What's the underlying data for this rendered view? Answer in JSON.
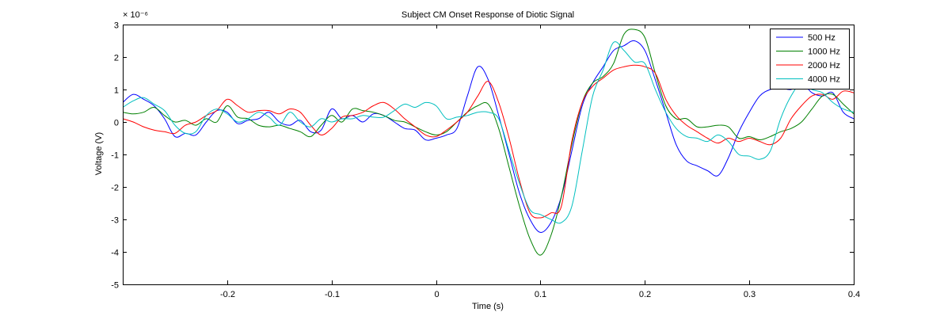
{
  "chart_data": {
    "type": "line",
    "title": "Subject CM Onset Response of Diotic Signal",
    "xlabel": "Time (s)",
    "ylabel": "Voltage (V)",
    "y_exponent_label": "× 10⁻⁶",
    "xlim": [
      -0.3,
      0.4
    ],
    "ylim": [
      -5,
      3
    ],
    "xticks": [
      -0.2,
      -0.1,
      0,
      0.1,
      0.2,
      0.3,
      0.4
    ],
    "xtick_labels": [
      "-0.2",
      "-0.1",
      "0",
      "0.1",
      "0.2",
      "0.3",
      "0.4"
    ],
    "yticks": [
      -5,
      -4,
      -3,
      -2,
      -1,
      0,
      1,
      2,
      3
    ],
    "ytick_labels": [
      "-5",
      "-4",
      "-3",
      "-2",
      "-1",
      "0",
      "1",
      "2",
      "3"
    ],
    "grid": false,
    "legend_position": "top-right",
    "series": [
      {
        "name": "500 Hz",
        "color": "#0000ff",
        "points": [
          [
            -0.3,
            0.6
          ],
          [
            -0.29,
            0.85
          ],
          [
            -0.28,
            0.7
          ],
          [
            -0.27,
            0.5
          ],
          [
            -0.26,
            0.1
          ],
          [
            -0.25,
            -0.45
          ],
          [
            -0.24,
            -0.35
          ],
          [
            -0.23,
            -0.4
          ],
          [
            -0.22,
            0.0
          ],
          [
            -0.21,
            0.35
          ],
          [
            -0.2,
            0.3
          ],
          [
            -0.19,
            -0.05
          ],
          [
            -0.18,
            0.05
          ],
          [
            -0.17,
            0.1
          ],
          [
            -0.16,
            0.3
          ],
          [
            -0.15,
            0.0
          ],
          [
            -0.14,
            -0.1
          ],
          [
            -0.13,
            0.05
          ],
          [
            -0.12,
            -0.3
          ],
          [
            -0.11,
            -0.25
          ],
          [
            -0.1,
            0.4
          ],
          [
            -0.09,
            0.1
          ],
          [
            -0.08,
            0.2
          ],
          [
            -0.07,
            0.0
          ],
          [
            -0.06,
            0.25
          ],
          [
            -0.05,
            0.2
          ],
          [
            -0.04,
            0.0
          ],
          [
            -0.03,
            -0.2
          ],
          [
            -0.02,
            -0.25
          ],
          [
            -0.01,
            -0.55
          ],
          [
            0.0,
            -0.5
          ],
          [
            0.01,
            -0.4
          ],
          [
            0.02,
            -0.2
          ],
          [
            0.03,
            0.8
          ],
          [
            0.04,
            1.7
          ],
          [
            0.05,
            1.3
          ],
          [
            0.06,
            0.2
          ],
          [
            0.07,
            -1.0
          ],
          [
            0.08,
            -2.2
          ],
          [
            0.09,
            -3.0
          ],
          [
            0.1,
            -3.4
          ],
          [
            0.11,
            -3.1
          ],
          [
            0.12,
            -2.3
          ],
          [
            0.13,
            -0.9
          ],
          [
            0.14,
            0.5
          ],
          [
            0.15,
            1.2
          ],
          [
            0.16,
            1.7
          ],
          [
            0.17,
            2.2
          ],
          [
            0.18,
            2.35
          ],
          [
            0.19,
            2.5
          ],
          [
            0.2,
            2.2
          ],
          [
            0.21,
            1.3
          ],
          [
            0.22,
            0.3
          ],
          [
            0.23,
            -0.7
          ],
          [
            0.24,
            -1.2
          ],
          [
            0.25,
            -1.35
          ],
          [
            0.26,
            -1.5
          ],
          [
            0.27,
            -1.65
          ],
          [
            0.28,
            -1.1
          ],
          [
            0.29,
            -0.3
          ],
          [
            0.3,
            0.3
          ],
          [
            0.31,
            0.8
          ],
          [
            0.32,
            1.0
          ],
          [
            0.33,
            1.05
          ],
          [
            0.34,
            1.0
          ],
          [
            0.35,
            1.2
          ],
          [
            0.36,
            0.9
          ],
          [
            0.37,
            0.8
          ],
          [
            0.38,
            0.9
          ],
          [
            0.39,
            0.3
          ],
          [
            0.4,
            0.1
          ]
        ]
      },
      {
        "name": "1000 Hz",
        "color": "#008000",
        "points": [
          [
            -0.3,
            0.3
          ],
          [
            -0.29,
            0.25
          ],
          [
            -0.28,
            0.3
          ],
          [
            -0.27,
            0.45
          ],
          [
            -0.26,
            0.2
          ],
          [
            -0.25,
            0.0
          ],
          [
            -0.24,
            0.05
          ],
          [
            -0.23,
            -0.1
          ],
          [
            -0.22,
            0.1
          ],
          [
            -0.21,
            0.0
          ],
          [
            -0.2,
            0.5
          ],
          [
            -0.19,
            0.15
          ],
          [
            -0.18,
            0.1
          ],
          [
            -0.17,
            -0.1
          ],
          [
            -0.16,
            -0.15
          ],
          [
            -0.15,
            -0.1
          ],
          [
            -0.14,
            -0.2
          ],
          [
            -0.13,
            -0.3
          ],
          [
            -0.12,
            -0.45
          ],
          [
            -0.11,
            -0.1
          ],
          [
            -0.1,
            0.2
          ],
          [
            -0.09,
            0.0
          ],
          [
            -0.08,
            0.4
          ],
          [
            -0.07,
            0.35
          ],
          [
            -0.06,
            0.3
          ],
          [
            -0.05,
            0.2
          ],
          [
            -0.04,
            0.05
          ],
          [
            -0.03,
            0.0
          ],
          [
            -0.02,
            -0.15
          ],
          [
            -0.01,
            -0.3
          ],
          [
            0.0,
            -0.4
          ],
          [
            0.01,
            -0.3
          ],
          [
            0.02,
            0.0
          ],
          [
            0.03,
            0.3
          ],
          [
            0.04,
            0.5
          ],
          [
            0.05,
            0.55
          ],
          [
            0.06,
            -0.2
          ],
          [
            0.07,
            -1.4
          ],
          [
            0.08,
            -2.6
          ],
          [
            0.09,
            -3.6
          ],
          [
            0.1,
            -4.1
          ],
          [
            0.11,
            -3.5
          ],
          [
            0.12,
            -2.3
          ],
          [
            0.13,
            -0.7
          ],
          [
            0.14,
            0.6
          ],
          [
            0.15,
            1.2
          ],
          [
            0.16,
            1.4
          ],
          [
            0.17,
            1.8
          ],
          [
            0.18,
            2.7
          ],
          [
            0.19,
            2.85
          ],
          [
            0.2,
            2.6
          ],
          [
            0.21,
            1.5
          ],
          [
            0.22,
            0.5
          ],
          [
            0.23,
            0.1
          ],
          [
            0.24,
            0.1
          ],
          [
            0.25,
            -0.15
          ],
          [
            0.26,
            -0.15
          ],
          [
            0.27,
            -0.1
          ],
          [
            0.28,
            -0.15
          ],
          [
            0.29,
            -0.5
          ],
          [
            0.3,
            -0.45
          ],
          [
            0.31,
            -0.55
          ],
          [
            0.32,
            -0.45
          ],
          [
            0.33,
            -0.3
          ],
          [
            0.34,
            -0.2
          ],
          [
            0.35,
            0.0
          ],
          [
            0.36,
            0.4
          ],
          [
            0.37,
            0.8
          ],
          [
            0.38,
            0.85
          ],
          [
            0.39,
            0.55
          ],
          [
            0.4,
            0.25
          ]
        ]
      },
      {
        "name": "2000 Hz",
        "color": "#ff0000",
        "points": [
          [
            -0.3,
            0.1
          ],
          [
            -0.29,
            0.0
          ],
          [
            -0.28,
            -0.15
          ],
          [
            -0.27,
            -0.25
          ],
          [
            -0.26,
            -0.3
          ],
          [
            -0.25,
            -0.35
          ],
          [
            -0.24,
            -0.1
          ],
          [
            -0.23,
            0.0
          ],
          [
            -0.22,
            0.2
          ],
          [
            -0.21,
            0.35
          ],
          [
            -0.2,
            0.7
          ],
          [
            -0.19,
            0.5
          ],
          [
            -0.18,
            0.3
          ],
          [
            -0.17,
            0.35
          ],
          [
            -0.16,
            0.35
          ],
          [
            -0.15,
            0.25
          ],
          [
            -0.14,
            0.4
          ],
          [
            -0.13,
            0.3
          ],
          [
            -0.12,
            -0.1
          ],
          [
            -0.11,
            -0.4
          ],
          [
            -0.1,
            -0.2
          ],
          [
            -0.09,
            0.15
          ],
          [
            -0.08,
            0.2
          ],
          [
            -0.07,
            0.3
          ],
          [
            -0.06,
            0.5
          ],
          [
            -0.05,
            0.6
          ],
          [
            -0.04,
            0.4
          ],
          [
            -0.03,
            0.1
          ],
          [
            -0.02,
            -0.15
          ],
          [
            -0.01,
            -0.4
          ],
          [
            0.0,
            -0.45
          ],
          [
            0.01,
            -0.25
          ],
          [
            0.02,
            0.0
          ],
          [
            0.03,
            0.3
          ],
          [
            0.04,
            0.8
          ],
          [
            0.05,
            1.25
          ],
          [
            0.06,
            0.6
          ],
          [
            0.07,
            -0.5
          ],
          [
            0.08,
            -1.8
          ],
          [
            0.09,
            -2.8
          ],
          [
            0.1,
            -2.95
          ],
          [
            0.11,
            -2.8
          ],
          [
            0.12,
            -2.6
          ],
          [
            0.13,
            -0.6
          ],
          [
            0.14,
            0.6
          ],
          [
            0.15,
            1.1
          ],
          [
            0.16,
            1.35
          ],
          [
            0.17,
            1.6
          ],
          [
            0.18,
            1.7
          ],
          [
            0.19,
            1.75
          ],
          [
            0.2,
            1.7
          ],
          [
            0.21,
            1.5
          ],
          [
            0.22,
            0.7
          ],
          [
            0.23,
            0.2
          ],
          [
            0.24,
            -0.1
          ],
          [
            0.25,
            -0.3
          ],
          [
            0.26,
            -0.5
          ],
          [
            0.27,
            -0.65
          ],
          [
            0.28,
            -0.5
          ],
          [
            0.29,
            -0.6
          ],
          [
            0.3,
            -0.5
          ],
          [
            0.31,
            -0.6
          ],
          [
            0.32,
            -0.7
          ],
          [
            0.33,
            -0.5
          ],
          [
            0.34,
            0.1
          ],
          [
            0.35,
            0.5
          ],
          [
            0.36,
            0.8
          ],
          [
            0.37,
            0.85
          ],
          [
            0.38,
            0.7
          ],
          [
            0.39,
            0.95
          ],
          [
            0.4,
            0.9
          ]
        ]
      },
      {
        "name": "4000 Hz",
        "color": "#00bfbf",
        "points": [
          [
            -0.3,
            0.45
          ],
          [
            -0.29,
            0.65
          ],
          [
            -0.28,
            0.75
          ],
          [
            -0.27,
            0.55
          ],
          [
            -0.26,
            0.35
          ],
          [
            -0.25,
            -0.1
          ],
          [
            -0.24,
            -0.35
          ],
          [
            -0.23,
            -0.3
          ],
          [
            -0.22,
            0.2
          ],
          [
            -0.21,
            0.4
          ],
          [
            -0.2,
            0.25
          ],
          [
            -0.19,
            0.0
          ],
          [
            -0.18,
            0.1
          ],
          [
            -0.17,
            0.3
          ],
          [
            -0.16,
            0.15
          ],
          [
            -0.15,
            -0.1
          ],
          [
            -0.14,
            0.3
          ],
          [
            -0.13,
            0.0
          ],
          [
            -0.12,
            -0.15
          ],
          [
            -0.11,
            0.1
          ],
          [
            -0.1,
            0.0
          ],
          [
            -0.09,
            0.1
          ],
          [
            -0.08,
            0.1
          ],
          [
            -0.07,
            0.2
          ],
          [
            -0.06,
            0.15
          ],
          [
            -0.05,
            0.15
          ],
          [
            -0.04,
            0.35
          ],
          [
            -0.03,
            0.55
          ],
          [
            -0.02,
            0.45
          ],
          [
            -0.01,
            0.6
          ],
          [
            0.0,
            0.5
          ],
          [
            0.01,
            0.1
          ],
          [
            0.02,
            0.15
          ],
          [
            0.03,
            0.2
          ],
          [
            0.04,
            0.3
          ],
          [
            0.05,
            0.3
          ],
          [
            0.06,
            0.1
          ],
          [
            0.07,
            -0.9
          ],
          [
            0.08,
            -1.9
          ],
          [
            0.09,
            -2.7
          ],
          [
            0.1,
            -2.85
          ],
          [
            0.11,
            -3.0
          ],
          [
            0.12,
            -3.1
          ],
          [
            0.13,
            -2.6
          ],
          [
            0.14,
            -0.9
          ],
          [
            0.15,
            0.8
          ],
          [
            0.16,
            1.6
          ],
          [
            0.17,
            2.45
          ],
          [
            0.18,
            2.2
          ],
          [
            0.19,
            1.85
          ],
          [
            0.2,
            1.8
          ],
          [
            0.21,
            1.0
          ],
          [
            0.22,
            0.3
          ],
          [
            0.23,
            -0.2
          ],
          [
            0.24,
            -0.45
          ],
          [
            0.25,
            -0.5
          ],
          [
            0.26,
            -0.6
          ],
          [
            0.27,
            -0.4
          ],
          [
            0.28,
            -0.6
          ],
          [
            0.29,
            -1.0
          ],
          [
            0.3,
            -1.05
          ],
          [
            0.31,
            -1.15
          ],
          [
            0.32,
            -0.9
          ],
          [
            0.33,
            0.1
          ],
          [
            0.34,
            0.8
          ],
          [
            0.35,
            1.2
          ],
          [
            0.36,
            1.0
          ],
          [
            0.37,
            0.9
          ],
          [
            0.38,
            0.6
          ],
          [
            0.39,
            0.4
          ],
          [
            0.4,
            0.3
          ]
        ]
      }
    ]
  }
}
